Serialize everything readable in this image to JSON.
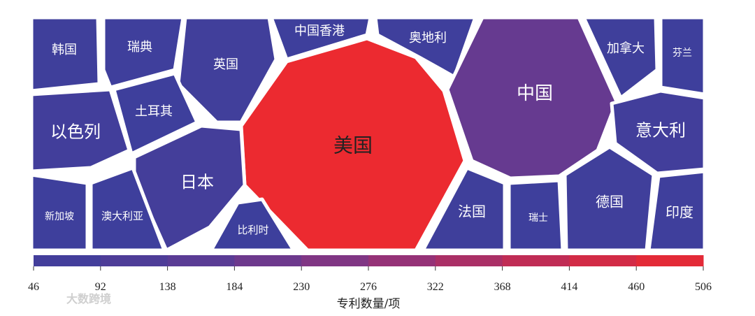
{
  "chart_data": {
    "type": "voronoi",
    "categories": [
      "韩国",
      "瑞典",
      "英国",
      "中国香港",
      "奥地利",
      "美国",
      "中国",
      "加拿大",
      "芬兰",
      "以色列",
      "土耳其",
      "日本",
      "新加坡",
      "澳大利亚",
      "比利时",
      "法国",
      "瑞士",
      "德国",
      "意大利",
      "印度"
    ],
    "values": [
      55,
      52,
      62,
      50,
      52,
      506,
      190,
      55,
      48,
      66,
      50,
      75,
      48,
      50,
      47,
      55,
      48,
      58,
      66,
      52
    ],
    "clim": [
      46,
      506
    ],
    "cticks": [
      46,
      92,
      138,
      184,
      230,
      276,
      322,
      368,
      414,
      460,
      506
    ],
    "colormap": [
      "#3d3f9c",
      "#5a3c95",
      "#8a3480",
      "#c02c55",
      "#ec2a30"
    ],
    "colorbar_label": "专利数量/项",
    "watermark": "大数跨境"
  }
}
